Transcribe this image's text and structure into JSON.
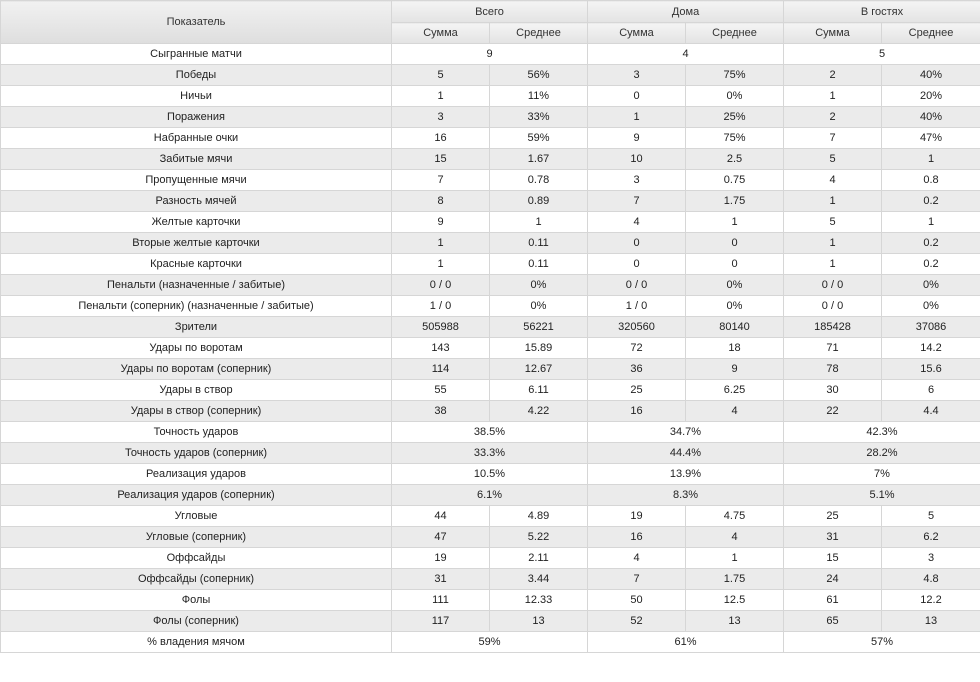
{
  "table": {
    "metric_header": "Показатель",
    "groups": [
      "Всего",
      "Дома",
      "В гостях"
    ],
    "subheaders": [
      "Сумма",
      "Среднее"
    ],
    "rows": [
      {
        "label": "Сыгранные матчи",
        "merged": true,
        "values": [
          "9",
          "4",
          "5"
        ]
      },
      {
        "label": "Победы",
        "values": [
          "5",
          "56%",
          "3",
          "75%",
          "2",
          "40%"
        ]
      },
      {
        "label": "Ничьи",
        "values": [
          "1",
          "11%",
          "0",
          "0%",
          "1",
          "20%"
        ]
      },
      {
        "label": "Поражения",
        "values": [
          "3",
          "33%",
          "1",
          "25%",
          "2",
          "40%"
        ]
      },
      {
        "label": "Набранные очки",
        "values": [
          "16",
          "59%",
          "9",
          "75%",
          "7",
          "47%"
        ]
      },
      {
        "label": "Забитые мячи",
        "values": [
          "15",
          "1.67",
          "10",
          "2.5",
          "5",
          "1"
        ]
      },
      {
        "label": "Пропущенные мячи",
        "values": [
          "7",
          "0.78",
          "3",
          "0.75",
          "4",
          "0.8"
        ]
      },
      {
        "label": "Разность мячей",
        "values": [
          "8",
          "0.89",
          "7",
          "1.75",
          "1",
          "0.2"
        ]
      },
      {
        "label": "Желтые карточки",
        "values": [
          "9",
          "1",
          "4",
          "1",
          "5",
          "1"
        ]
      },
      {
        "label": "Вторые желтые карточки",
        "values": [
          "1",
          "0.11",
          "0",
          "0",
          "1",
          "0.2"
        ]
      },
      {
        "label": "Красные карточки",
        "values": [
          "1",
          "0.11",
          "0",
          "0",
          "1",
          "0.2"
        ]
      },
      {
        "label": "Пенальти (назначенные / забитые)",
        "values": [
          "0 / 0",
          "0%",
          "0 / 0",
          "0%",
          "0 / 0",
          "0%"
        ]
      },
      {
        "label": "Пенальти (соперник) (назначенные / забитые)",
        "values": [
          "1 / 0",
          "0%",
          "1 / 0",
          "0%",
          "0 / 0",
          "0%"
        ]
      },
      {
        "label": "Зрители",
        "values": [
          "505988",
          "56221",
          "320560",
          "80140",
          "185428",
          "37086"
        ]
      },
      {
        "label": "Удары по воротам",
        "values": [
          "143",
          "15.89",
          "72",
          "18",
          "71",
          "14.2"
        ]
      },
      {
        "label": "Удары по воротам (соперник)",
        "values": [
          "114",
          "12.67",
          "36",
          "9",
          "78",
          "15.6"
        ]
      },
      {
        "label": "Удары в створ",
        "values": [
          "55",
          "6.11",
          "25",
          "6.25",
          "30",
          "6"
        ]
      },
      {
        "label": "Удары в створ (соперник)",
        "values": [
          "38",
          "4.22",
          "16",
          "4",
          "22",
          "4.4"
        ]
      },
      {
        "label": "Точность ударов",
        "merged": true,
        "values": [
          "38.5%",
          "34.7%",
          "42.3%"
        ]
      },
      {
        "label": "Точность ударов (соперник)",
        "merged": true,
        "values": [
          "33.3%",
          "44.4%",
          "28.2%"
        ]
      },
      {
        "label": "Реализация ударов",
        "merged": true,
        "values": [
          "10.5%",
          "13.9%",
          "7%"
        ]
      },
      {
        "label": "Реализация ударов (соперник)",
        "merged": true,
        "values": [
          "6.1%",
          "8.3%",
          "5.1%"
        ]
      },
      {
        "label": "Угловые",
        "values": [
          "44",
          "4.89",
          "19",
          "4.75",
          "25",
          "5"
        ]
      },
      {
        "label": "Угловые (соперник)",
        "values": [
          "47",
          "5.22",
          "16",
          "4",
          "31",
          "6.2"
        ]
      },
      {
        "label": "Оффсайды",
        "values": [
          "19",
          "2.11",
          "4",
          "1",
          "15",
          "3"
        ]
      },
      {
        "label": "Оффсайды (соперник)",
        "values": [
          "31",
          "3.44",
          "7",
          "1.75",
          "24",
          "4.8"
        ]
      },
      {
        "label": "Фолы",
        "values": [
          "111",
          "12.33",
          "50",
          "12.5",
          "61",
          "12.2"
        ]
      },
      {
        "label": "Фолы (соперник)",
        "values": [
          "117",
          "13",
          "52",
          "13",
          "65",
          "13"
        ]
      },
      {
        "label": "% владения мячом",
        "merged": true,
        "values": [
          "59%",
          "61%",
          "57%"
        ]
      }
    ]
  }
}
